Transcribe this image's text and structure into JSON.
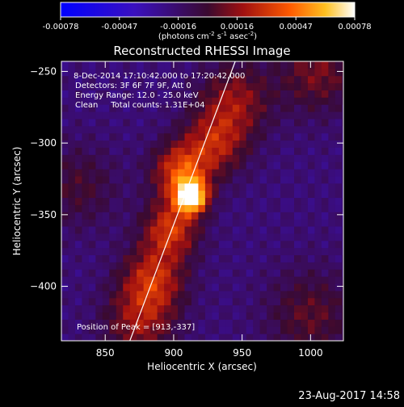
{
  "chart_data": {
    "type": "heatmap",
    "title": "Reconstructed RHESSI Image",
    "xlabel": "Heliocentric X (arcsec)",
    "ylabel": "Heliocentric Y (arcsec)",
    "xlim": [
      818,
      1024
    ],
    "ylim": [
      -438,
      -243
    ],
    "x_ticks": [
      850,
      900,
      950,
      1000
    ],
    "y_ticks": [
      -250,
      -300,
      -350,
      -400
    ],
    "colorbar": {
      "min": -0.00078,
      "max": 0.00078,
      "ticks": [
        "-0.00078",
        "-0.00047",
        "-0.00016",
        "0.00016",
        "0.00047",
        "0.00078"
      ],
      "unit_parts": [
        "(photons cm",
        "-2",
        " s",
        "-1",
        " asec",
        "-2",
        ")"
      ]
    },
    "annotations": [
      "8-Dec-2014 17:10:42.000 to 17:20:42.000",
      "Detectors: 3F 6F 7F 9F, Att 0",
      "Energy Range: 12.0 - 25.0 keV",
      "Clean     Total counts: 1.31E+04"
    ],
    "peak_label": "Position of Peak = [913,-337]",
    "peak": [
      913,
      -337
    ],
    "limb_line": {
      "x": [
        868,
        945
      ],
      "y": [
        -438,
        -243
      ]
    },
    "emission_sources": [
      {
        "x": 913,
        "y": -337,
        "amplitude": 1.0,
        "width": 8
      },
      {
        "x": 905,
        "y": -320,
        "amplitude": 0.55,
        "width": 14
      },
      {
        "x": 898,
        "y": -360,
        "amplitude": 0.5,
        "width": 14
      },
      {
        "x": 885,
        "y": -395,
        "amplitude": 0.45,
        "width": 16
      },
      {
        "x": 930,
        "y": -300,
        "amplitude": 0.4,
        "width": 16
      },
      {
        "x": 945,
        "y": -270,
        "amplitude": 0.35,
        "width": 18
      },
      {
        "x": 875,
        "y": -425,
        "amplitude": 0.35,
        "width": 18
      },
      {
        "x": 1005,
        "y": -250,
        "amplitude": 0.3,
        "width": 20
      },
      {
        "x": 1000,
        "y": -420,
        "amplitude": 0.25,
        "width": 22
      },
      {
        "x": 830,
        "y": -330,
        "amplitude": 0.2,
        "width": 20
      }
    ]
  },
  "footer": {
    "timestamp": "23-Aug-2017 14:58"
  }
}
